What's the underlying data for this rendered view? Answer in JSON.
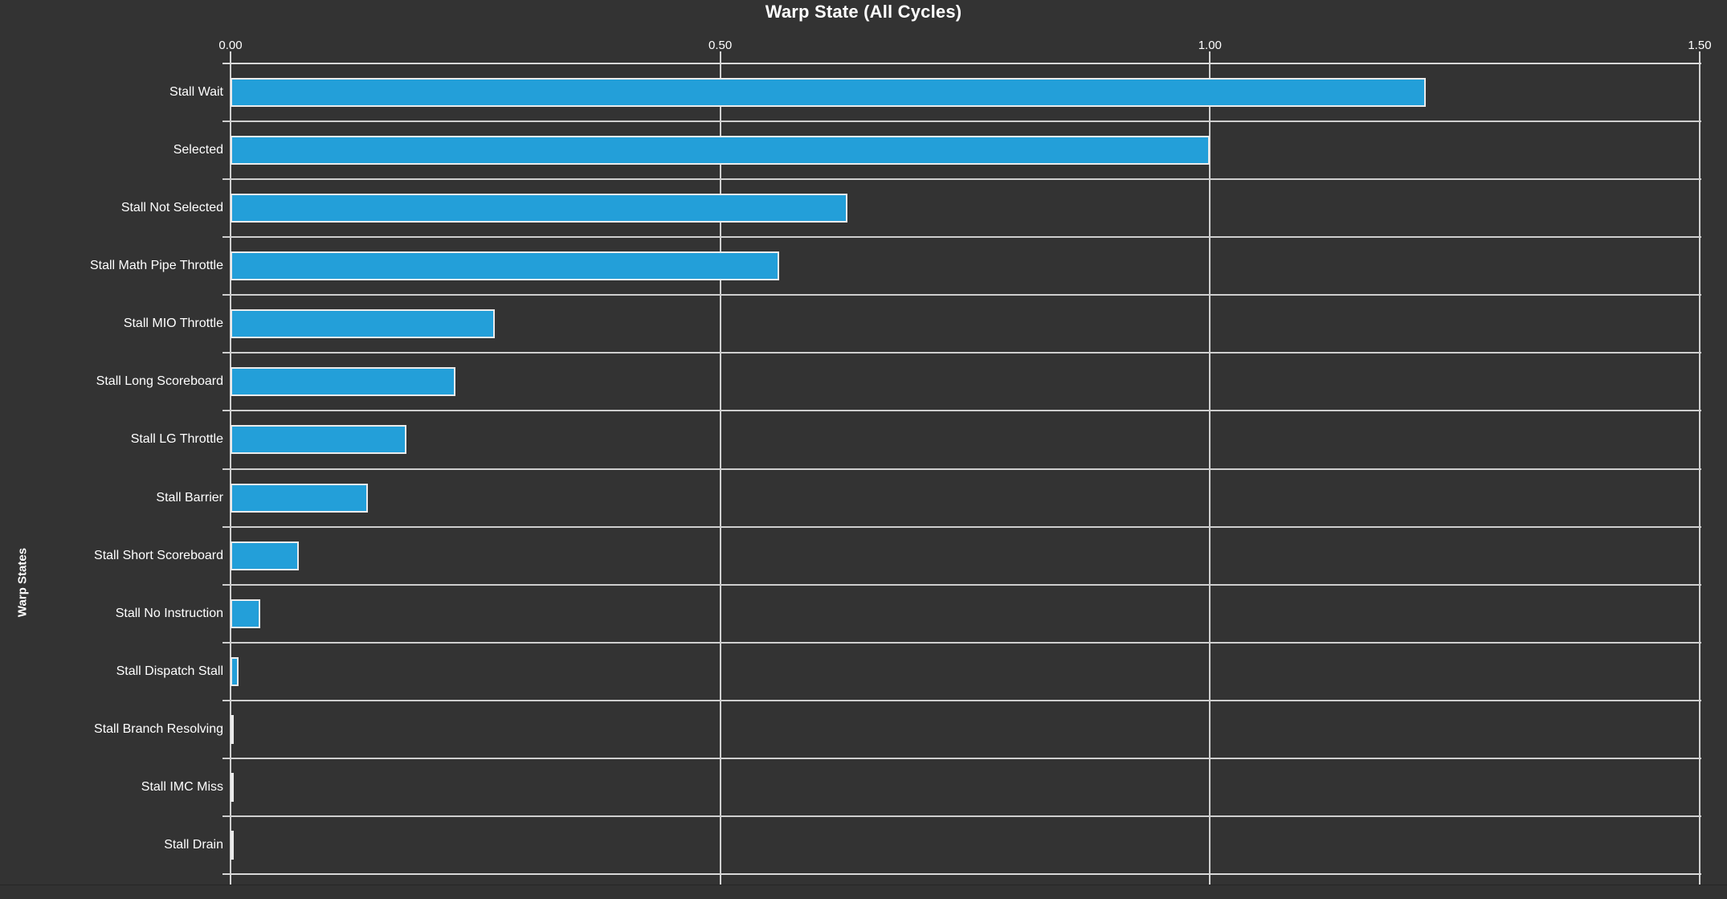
{
  "chart_data": {
    "type": "bar",
    "orientation": "horizontal",
    "title": "Warp State (All Cycles)",
    "ylabel": "Warp States",
    "xlabel": "",
    "x_axis_position": "top",
    "xlim": [
      0,
      1.5
    ],
    "x_tick_values": [
      0,
      0.5,
      1.0,
      1.5
    ],
    "x_tick_labels": [
      "0.00",
      "0.50",
      "1.00",
      "1.50"
    ],
    "grid": true,
    "legend": "none",
    "categories": [
      "Stall Wait",
      "Selected",
      "Stall Not Selected",
      "Stall Math Pipe Throttle",
      "Stall MIO Throttle",
      "Stall Long Scoreboard",
      "Stall LG Throttle",
      "Stall Barrier",
      "Stall Short Scoreboard",
      "Stall No Instruction",
      "Stall Dispatch Stall",
      "Stall Branch Resolving",
      "Stall IMC Miss",
      "Stall Drain"
    ],
    "values": [
      1.22,
      1.0,
      0.63,
      0.56,
      0.27,
      0.23,
      0.18,
      0.14,
      0.07,
      0.03,
      0.008,
      0.002,
      0.001,
      0.001
    ],
    "colors": {
      "background": "#333333",
      "bar_fill": "#239fd9",
      "bar_outline": "#ebebeb",
      "gridline": "#cfcfcf",
      "text": "#ffffff"
    }
  }
}
